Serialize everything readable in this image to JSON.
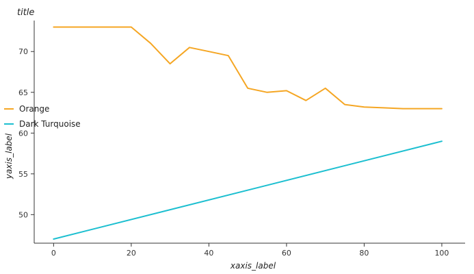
{
  "chart_data": {
    "type": "line",
    "title": "title",
    "xlabel": "xaxis_label",
    "ylabel": "yaxis_label",
    "xlim": [
      -5,
      106
    ],
    "ylim": [
      46.5,
      73.8
    ],
    "xticks": [
      0,
      20,
      40,
      60,
      80,
      100
    ],
    "yticks": [
      50,
      55,
      60,
      65,
      70
    ],
    "grid": false,
    "legend_position": "left",
    "series": [
      {
        "name": "Orange",
        "color": "#f5a623",
        "x": [
          0,
          5,
          10,
          20,
          25,
          30,
          35,
          40,
          45,
          50,
          55,
          60,
          65,
          70,
          75,
          80,
          85,
          90,
          95,
          100
        ],
        "y": [
          73,
          73,
          73,
          73,
          71,
          68.5,
          70.5,
          70,
          69.5,
          65.5,
          65,
          65.2,
          64,
          65.5,
          63.5,
          63.2,
          63.1,
          63,
          63,
          63
        ]
      },
      {
        "name": "Dark Turquoise",
        "color": "#1cbfd0",
        "x": [
          0,
          100
        ],
        "y": [
          47,
          59
        ]
      }
    ]
  }
}
